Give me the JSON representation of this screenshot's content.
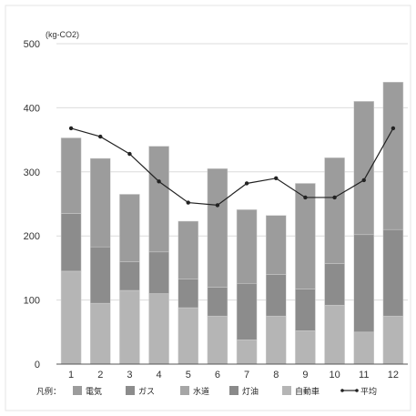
{
  "chart_data": {
    "type": "bar",
    "stacked": true,
    "unit_label": "(kg-CO2)",
    "categories": [
      "1",
      "2",
      "3",
      "4",
      "5",
      "6",
      "7",
      "8",
      "9",
      "10",
      "11",
      "12"
    ],
    "ylim": [
      0,
      500
    ],
    "yticks": [
      "0",
      "100",
      "200",
      "300",
      "400",
      "500"
    ],
    "grid": true,
    "legend_prefix": "凡例：",
    "series": [
      {
        "name": "自動車",
        "color": "#b5b5b5",
        "values": [
          145,
          95,
          115,
          110,
          88,
          75,
          38,
          75,
          52,
          92,
          50,
          75
        ]
      },
      {
        "name": "灯油",
        "color": "#8a8a8a",
        "values": [
          0,
          0,
          0,
          0,
          0,
          0,
          0,
          0,
          0,
          0,
          0,
          0
        ]
      },
      {
        "name": "水道",
        "color": "#a6a6a6",
        "values": [
          0,
          0,
          0,
          0,
          0,
          0,
          0,
          0,
          0,
          0,
          0,
          0
        ]
      },
      {
        "name": "ガス",
        "color": "#8c8c8c",
        "values": [
          90,
          88,
          45,
          65,
          45,
          45,
          88,
          65,
          65,
          65,
          152,
          135
        ]
      },
      {
        "name": "電気",
        "color": "#9c9c9c",
        "values": [
          118,
          138,
          105,
          165,
          90,
          185,
          115,
          92,
          165,
          165,
          208,
          230
        ]
      }
    ],
    "line": {
      "name": "平均",
      "color": "#222222",
      "values": [
        368,
        355,
        328,
        285,
        252,
        248,
        282,
        290,
        260,
        260,
        287,
        368
      ]
    },
    "legend_order": [
      "電気",
      "ガス",
      "水道",
      "灯油",
      "自動車",
      "平均"
    ]
  }
}
